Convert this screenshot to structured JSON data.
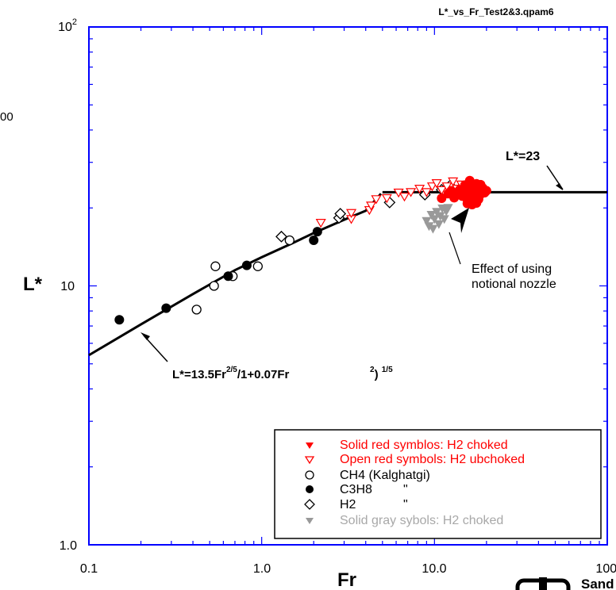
{
  "chart_data": {
    "type": "scatter",
    "file_label": "L*_vs_Fr_Test2&3.qpam6",
    "xlabel": "Fr",
    "ylabel": "L*",
    "x_scale": "log",
    "y_scale": "log",
    "xlim": [
      0.1,
      100
    ],
    "ylim": [
      1,
      100
    ],
    "x_ticks": [
      {
        "value": 0.1,
        "label": "0.1"
      },
      {
        "value": 1,
        "label": "1.0"
      },
      {
        "value": 10,
        "label": "10.0"
      },
      {
        "value": 100,
        "label": "100."
      }
    ],
    "y_ticks": [
      {
        "value": 1,
        "label": "1.0"
      },
      {
        "value": 10,
        "label": "10"
      }
    ],
    "y_top_label": {
      "base": "10",
      "exp": "2"
    },
    "left_cropped_text": "00",
    "logo_text": "Sand",
    "fit_lines": [
      {
        "x": [
          0.1,
          0.2,
          0.4,
          0.7,
          1.0,
          1.5,
          2.0,
          3.0,
          4.0,
          4.9
        ],
        "y": [
          5.4,
          7.1,
          9.3,
          11.5,
          12.9,
          14.6,
          16.0,
          18.0,
          19.5,
          22.7
        ]
      },
      {
        "x": [
          5.0,
          100
        ],
        "y": [
          23,
          23
        ]
      }
    ],
    "annotations": [
      {
        "text": "L*=23",
        "x": 60,
        "y": 28,
        "arrow_to": [
          60,
          23.2
        ]
      },
      {
        "text": "Effect of using",
        "x": 22,
        "y": 12.6
      },
      {
        "text": "notional nozzle",
        "x": 22,
        "y": 10.9
      },
      {
        "text_parts": [
          "L*=13.5Fr",
          "2/5",
          "/1+0.07Fr",
          "2",
          ") ",
          "1/5"
        ]
      }
    ],
    "legend": {
      "position": "bottom-right",
      "entries": [
        {
          "label": "Solid red symblos: H2 choked",
          "marker": "triangle-down-filled",
          "color": "#ff0000"
        },
        {
          "label": "Open red symbols: H2 ubchoked",
          "marker": "triangle-down-open",
          "color": "#ff0000"
        },
        {
          "label": "CH4 (Kalghatgi)",
          "marker": "circle-open",
          "color": "#000000"
        },
        {
          "label": "C3H8",
          "ditto": "\"",
          "marker": "circle-filled",
          "color": "#000000"
        },
        {
          "label": "H2",
          "ditto": "\"",
          "marker": "diamond-open",
          "color": "#000000"
        },
        {
          "label": "Solid gray sybols: H2 choked",
          "marker": "triangle-down-filled",
          "color": "#999999"
        }
      ]
    },
    "series": [
      {
        "marker": "circle-open",
        "color": "#000000",
        "x": [
          0.42,
          0.53,
          0.54,
          0.68,
          0.95,
          1.45
        ],
        "y": [
          8.1,
          10.0,
          11.9,
          10.9,
          11.9,
          15.0
        ]
      },
      {
        "marker": "circle-filled",
        "color": "#000000",
        "x": [
          0.15,
          0.28,
          0.64,
          0.82,
          2.0,
          2.1
        ],
        "y": [
          7.4,
          8.2,
          10.9,
          12.0,
          15.0,
          16.2
        ]
      },
      {
        "marker": "diamond-open",
        "color": "#000000",
        "x": [
          1.3,
          2.8,
          2.85,
          5.5,
          8.8,
          11.0,
          11.5,
          12.3,
          14.0
        ],
        "y": [
          15.5,
          18.3,
          19.0,
          21.0,
          22.5,
          23.5,
          23.2,
          24.4,
          23.7
        ]
      },
      {
        "marker": "triangle-down-open",
        "color": "#ff0000",
        "x": [
          2.2,
          3.3,
          3.3,
          4.2,
          4.3,
          4.6,
          5.3,
          6.2,
          6.7,
          7.3,
          8.2,
          9.0,
          9.7,
          10.3,
          11.0,
          11.8,
          12.8,
          13.5,
          14.3
        ],
        "y": [
          17.5,
          18.1,
          19.1,
          19.6,
          20.4,
          21.6,
          21.8,
          22.9,
          22.1,
          23.0,
          23.7,
          23.0,
          24.2,
          24.9,
          23.4,
          24.2,
          25.3,
          23.7,
          24.6
        ]
      },
      {
        "marker": "triangle-down-filled",
        "color": "#999999",
        "x": [
          9.0,
          9.3,
          9.6,
          9.8,
          10.0,
          10.3,
          10.6,
          10.8,
          11.1,
          11.4,
          11.7,
          12.0
        ],
        "y": [
          17.8,
          17.0,
          18.8,
          16.6,
          18.1,
          19.3,
          17.3,
          18.6,
          19.9,
          18.1,
          19.4,
          20.0
        ]
      },
      {
        "marker": "circle-filled",
        "color": "#ff0000",
        "x": [
          11.0,
          12.0,
          12.5,
          13.0,
          13.5,
          14.0,
          14.5,
          15.0,
          15.0,
          15.5,
          16.0,
          16.0,
          16.5,
          16.5,
          17.0,
          17.0,
          17.5,
          17.5,
          18.0,
          18.0,
          18.5,
          19.0,
          19.5,
          20.0,
          15.5,
          16.5,
          17.5,
          18.5
        ],
        "y": [
          21.8,
          22.7,
          23.3,
          21.9,
          22.5,
          23.5,
          22.2,
          22.8,
          24.5,
          21.5,
          23.2,
          25.5,
          22.0,
          24.0,
          21.0,
          23.8,
          22.3,
          24.8,
          21.6,
          23.5,
          22.6,
          23.9,
          22.9,
          23.3,
          20.8,
          20.6,
          20.9,
          24.6
        ]
      }
    ]
  }
}
